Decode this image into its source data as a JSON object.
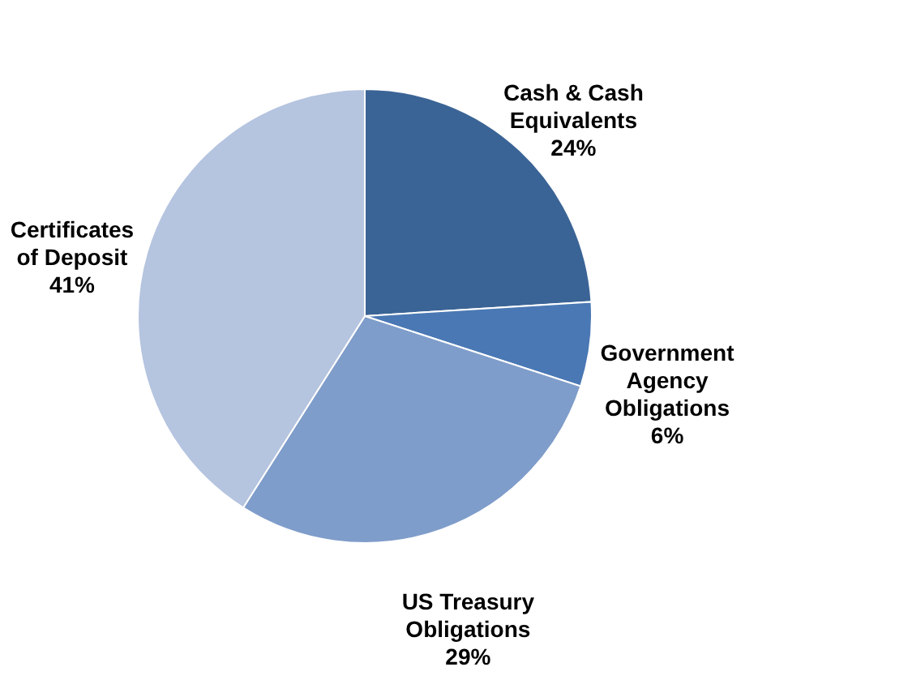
{
  "chart_data": {
    "type": "pie",
    "categories": [
      "Cash & Cash Equivalents",
      "Government Agency Obligations",
      "US Treasury Obligations",
      "Certificates of Deposit"
    ],
    "values": [
      24,
      6,
      29,
      41
    ],
    "value_labels": [
      "24%",
      "6%",
      "29%",
      "41%"
    ],
    "colors": [
      "#3b6496",
      "#4a78b4",
      "#7f9dca",
      "#b5c4df"
    ],
    "legend": false
  }
}
